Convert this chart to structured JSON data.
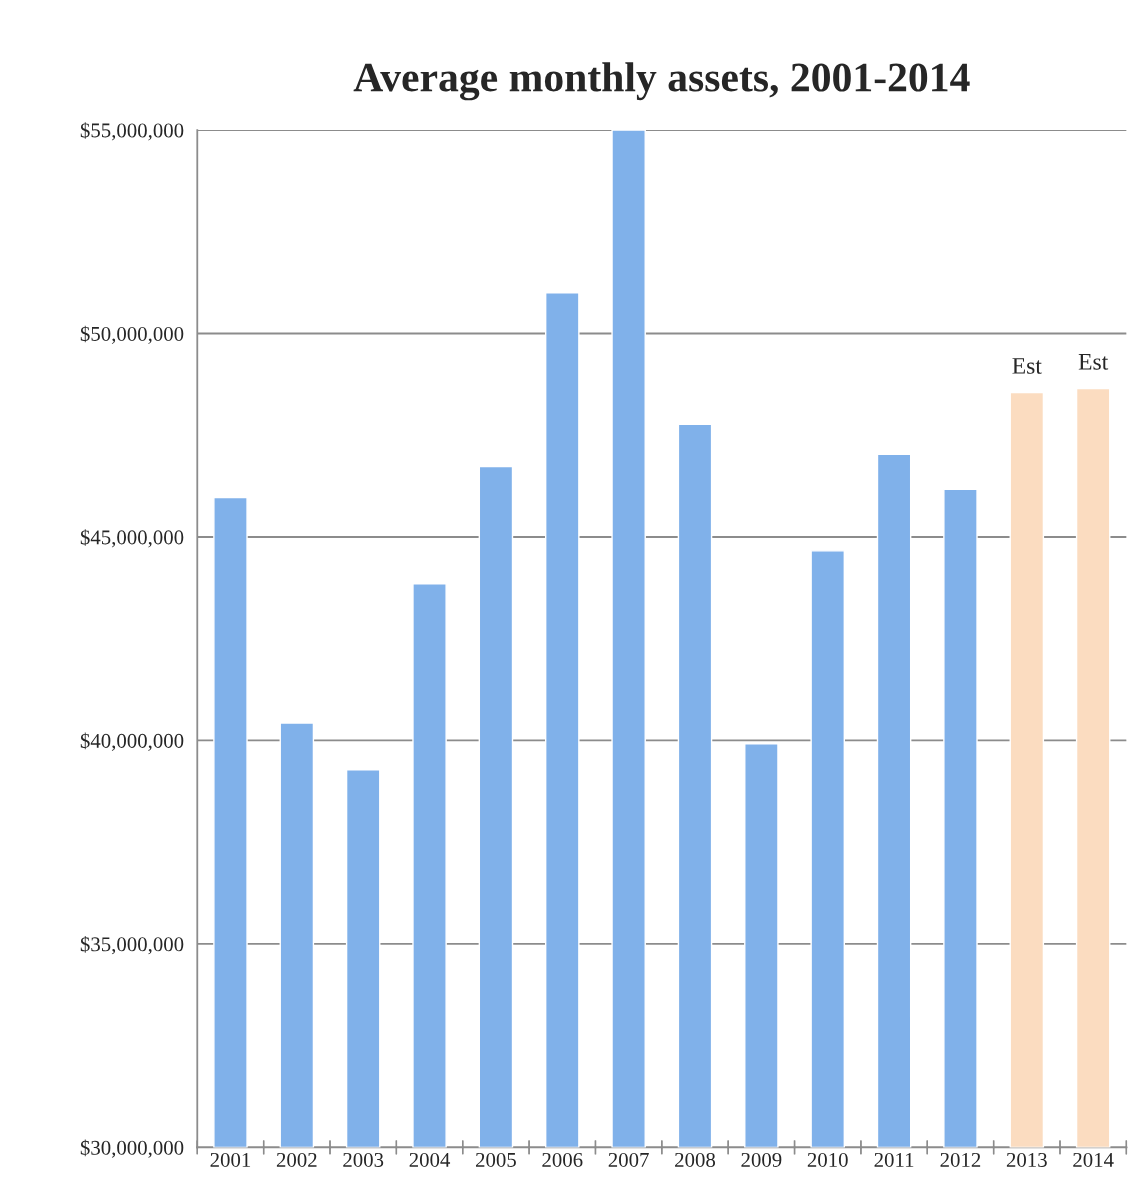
{
  "chart_data": {
    "type": "bar",
    "title": "Average monthly assets, 2001-2014",
    "categories": [
      "2001",
      "2002",
      "2003",
      "2004",
      "2005",
      "2006",
      "2007",
      "2008",
      "2009",
      "2010",
      "2011",
      "2012",
      "2013",
      "2014"
    ],
    "values": [
      45970000,
      40430000,
      39280000,
      43850000,
      46730000,
      51000000,
      55000000,
      47770000,
      39920000,
      44660000,
      47030000,
      46170000,
      48550000,
      48650000
    ],
    "colors": [
      "#80b1ea",
      "#80b1ea",
      "#80b1ea",
      "#80b1ea",
      "#80b1ea",
      "#80b1ea",
      "#80b1ea",
      "#80b1ea",
      "#80b1ea",
      "#80b1ea",
      "#80b1ea",
      "#80b1ea",
      "#fbdcc0",
      "#fbdcc0"
    ],
    "ylim": [
      30000000,
      55000000
    ],
    "yticks": [
      {
        "value": 30000000,
        "label": "$30,000,000"
      },
      {
        "value": 35000000,
        "label": "$35,000,000"
      },
      {
        "value": 40000000,
        "label": "$40,000,000"
      },
      {
        "value": 45000000,
        "label": "$45,000,000"
      },
      {
        "value": 50000000,
        "label": "$50,000,000"
      },
      {
        "value": 55000000,
        "label": "$55,000,000"
      }
    ],
    "grid": "y",
    "annotations": [
      {
        "text": "Est",
        "x": "2013",
        "y": 48550000
      },
      {
        "text": "Est",
        "x": "2014",
        "y": 48650000
      }
    ]
  }
}
